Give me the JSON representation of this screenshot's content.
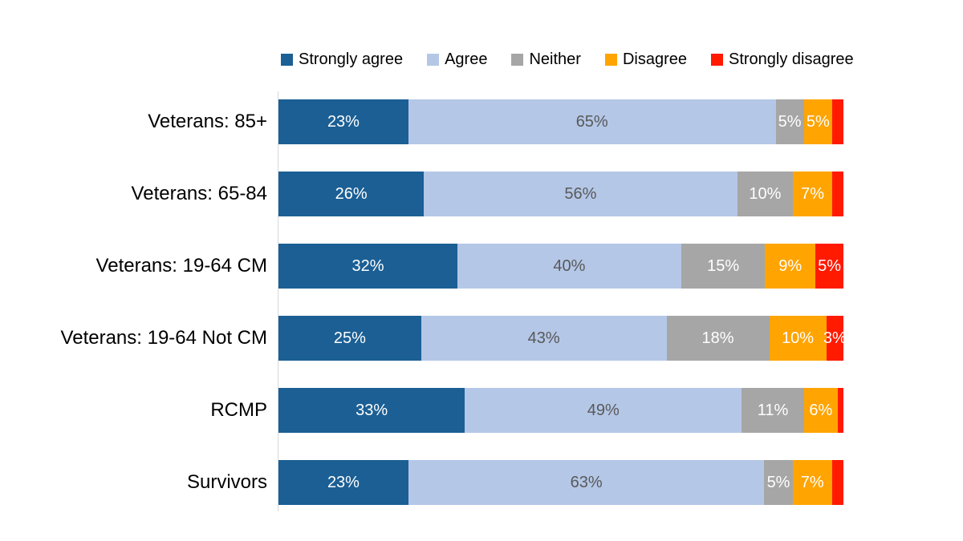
{
  "chart_data": {
    "type": "bar",
    "orientation": "horizontal-stacked",
    "title": "",
    "xlabel": "",
    "ylabel": "",
    "xlim": [
      0,
      100
    ],
    "grid": false,
    "legend_position": "top",
    "value_suffix": "%",
    "min_label_value": 3,
    "background": "#FFFFFF",
    "axis_line_color": "#D9D9D9",
    "categories": [
      "Veterans: 85+",
      "Veterans: 65-84",
      "Veterans: 19-64 CM",
      "Veterans: 19-64 Not CM",
      "RCMP",
      "Survivors"
    ],
    "series": [
      {
        "name": "Strongly agree",
        "color": "#1B5F94",
        "label_color": "#FFFFFF",
        "values": [
          23,
          26,
          32,
          25,
          33,
          23
        ]
      },
      {
        "name": "Agree",
        "color": "#B4C7E7",
        "label_color": "#595959",
        "values": [
          65,
          56,
          40,
          43,
          49,
          63
        ]
      },
      {
        "name": "Neither",
        "color": "#A6A6A6",
        "label_color": "#FFFFFF",
        "values": [
          5,
          10,
          15,
          18,
          11,
          5
        ]
      },
      {
        "name": "Disagree",
        "color": "#FFA400",
        "label_color": "#FFFFFF",
        "values": [
          5,
          7,
          9,
          10,
          6,
          7
        ]
      },
      {
        "name": "Strongly disagree",
        "color": "#FF1A00",
        "label_color": "#FFFFFF",
        "values": [
          2,
          2,
          5,
          3,
          1,
          2
        ]
      }
    ]
  }
}
